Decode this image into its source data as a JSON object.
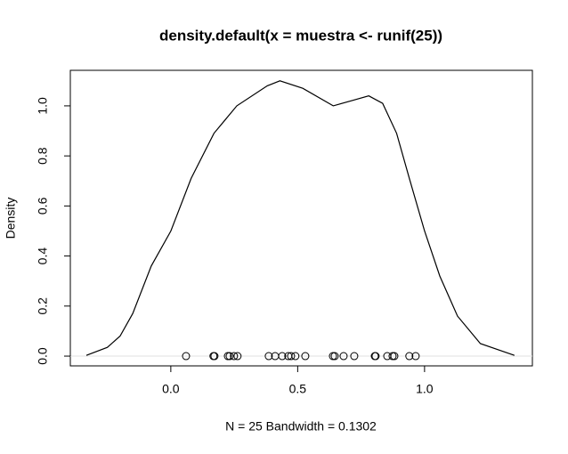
{
  "chart_data": {
    "type": "line",
    "title": "density.default(x = muestra <- runif(25))",
    "xlabel": "N = 25   Bandwidth = 0.1302",
    "ylabel": "Density",
    "color": "#000000",
    "x": [
      -0.333,
      -0.25,
      -0.2,
      -0.15,
      -0.077,
      0,
      0.08,
      0.17,
      0.26,
      0.38,
      0.43,
      0.52,
      0.64,
      0.71,
      0.78,
      0.835,
      0.89,
      0.94,
      1.0,
      1.06,
      1.13,
      1.22,
      1.354
    ],
    "values": [
      0.003,
      0.035,
      0.08,
      0.17,
      0.36,
      0.5,
      0.71,
      0.89,
      1.0,
      1.08,
      1.1,
      1.07,
      1.0,
      1.02,
      1.04,
      1.01,
      0.89,
      0.71,
      0.5,
      0.32,
      0.16,
      0.05,
      0.003
    ],
    "rug": {
      "x": [
        0.06,
        0.168,
        0.172,
        0.225,
        0.232,
        0.249,
        0.263,
        0.386,
        0.411,
        0.439,
        0.463,
        0.474,
        0.491,
        0.53,
        0.639,
        0.646,
        0.681,
        0.723,
        0.804,
        0.807,
        0.853,
        0.874,
        0.881,
        0.94,
        0.965
      ],
      "values": [
        0,
        0,
        0,
        0,
        0,
        0,
        0,
        0,
        0,
        0,
        0,
        0,
        0,
        0,
        0,
        0,
        0,
        0,
        0,
        0,
        0,
        0,
        0,
        0,
        0
      ]
    },
    "xlim": [
      -0.396,
      1.425
    ],
    "ylim": [
      -0.039,
      1.142
    ],
    "xticks": [
      {
        "value": 0,
        "label": "0.0"
      },
      0.5,
      {
        "value": 1,
        "label": "1.0"
      }
    ],
    "yticks": [
      {
        "value": 0,
        "label": "0.0"
      },
      0.2,
      0.4,
      0.6,
      0.8,
      {
        "value": 1,
        "label": "1.0"
      }
    ]
  }
}
